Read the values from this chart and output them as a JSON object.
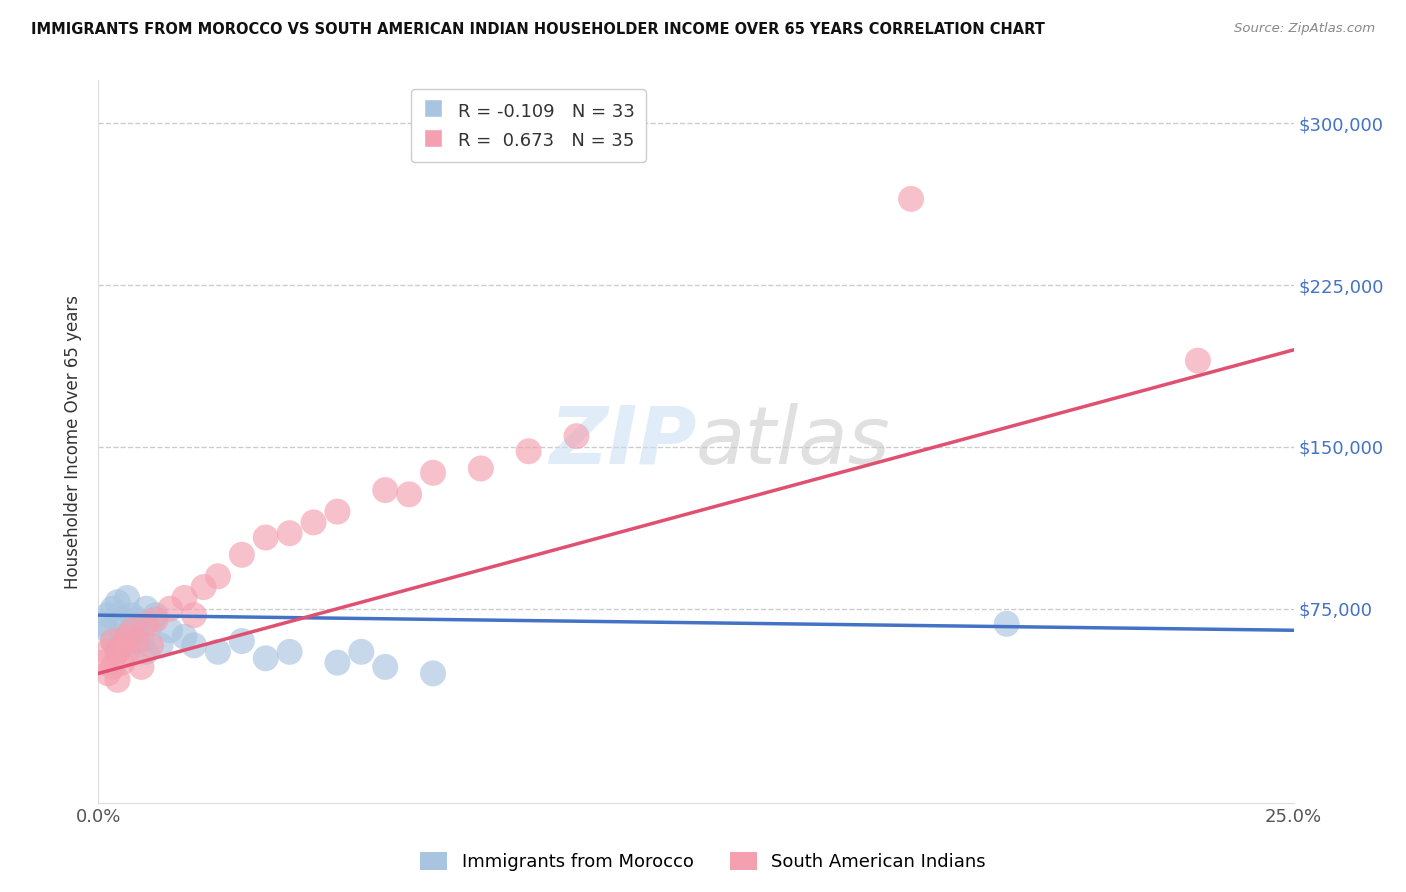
{
  "title": "IMMIGRANTS FROM MOROCCO VS SOUTH AMERICAN INDIAN HOUSEHOLDER INCOME OVER 65 YEARS CORRELATION CHART",
  "source": "Source: ZipAtlas.com",
  "ylabel": "Householder Income Over 65 years",
  "xlim": [
    0.0,
    0.25
  ],
  "ylim": [
    -15000,
    320000
  ],
  "morocco_R": -0.109,
  "morocco_N": 33,
  "sai_R": 0.673,
  "sai_N": 35,
  "morocco_color": "#a8c4e0",
  "sai_color": "#f4a0b0",
  "morocco_line_color": "#4472c4",
  "sai_line_color": "#e05070",
  "legend_label_morocco": "Immigrants from Morocco",
  "legend_label_sai": "South American Indians",
  "morocco_x": [
    0.001,
    0.002,
    0.002,
    0.003,
    0.003,
    0.004,
    0.004,
    0.005,
    0.005,
    0.006,
    0.006,
    0.007,
    0.007,
    0.008,
    0.008,
    0.009,
    0.01,
    0.01,
    0.011,
    0.012,
    0.013,
    0.015,
    0.018,
    0.02,
    0.025,
    0.03,
    0.035,
    0.04,
    0.05,
    0.055,
    0.06,
    0.19,
    0.07
  ],
  "morocco_y": [
    68000,
    72000,
    65000,
    75000,
    60000,
    78000,
    55000,
    70000,
    62000,
    80000,
    58000,
    68000,
    72000,
    65000,
    70000,
    60000,
    75000,
    55000,
    68000,
    72000,
    58000,
    65000,
    62000,
    58000,
    55000,
    60000,
    52000,
    55000,
    50000,
    55000,
    48000,
    68000,
    45000
  ],
  "sai_x": [
    0.001,
    0.002,
    0.002,
    0.003,
    0.003,
    0.004,
    0.004,
    0.005,
    0.005,
    0.006,
    0.006,
    0.007,
    0.008,
    0.009,
    0.01,
    0.011,
    0.012,
    0.015,
    0.018,
    0.02,
    0.022,
    0.025,
    0.03,
    0.035,
    0.04,
    0.045,
    0.05,
    0.06,
    0.065,
    0.07,
    0.08,
    0.09,
    0.1,
    0.17,
    0.23
  ],
  "sai_y": [
    50000,
    55000,
    45000,
    60000,
    48000,
    55000,
    42000,
    58000,
    50000,
    62000,
    55000,
    65000,
    60000,
    48000,
    68000,
    58000,
    70000,
    75000,
    80000,
    72000,
    85000,
    90000,
    100000,
    108000,
    110000,
    115000,
    120000,
    130000,
    128000,
    138000,
    140000,
    148000,
    155000,
    265000,
    190000
  ],
  "morocco_trend_x": [
    0.0,
    0.25
  ],
  "morocco_trend_y": [
    72000,
    65000
  ],
  "sai_trend_x": [
    0.0,
    0.25
  ],
  "sai_trend_y": [
    45000,
    195000
  ]
}
